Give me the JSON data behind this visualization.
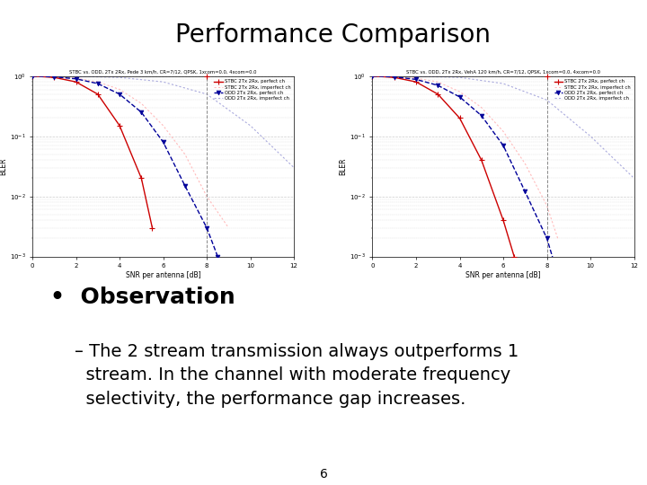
{
  "title": "Performance Comparison",
  "title_fontsize": 20,
  "title_fontweight": "normal",
  "background_color": "#ffffff",
  "page_number": "6",
  "plot1": {
    "subtitle": "STBC vs. ODD, 2Tx 2Rx, Pede 3 km/h, CR=7/12, QPSK, 1xcom=0.0, 4xcom=0.0",
    "xlabel": "SNR per antenna [dB]",
    "ylabel": "BLER",
    "xlim": [
      0,
      12
    ],
    "ylim_log": [
      -3,
      0
    ],
    "xticks": [
      0,
      2,
      4,
      6,
      8,
      10,
      12
    ],
    "xtick_labels": [
      "0",
      "2",
      "4",
      "6",
      "8",
      "10",
      "12"
    ],
    "legend": [
      "STBC 2Tx 2Rx, perfect ch",
      "STBC 2Tx 2Rx, imperfect ch",
      "ODD 2Tx 2Rx, perfect ch",
      "ODD 2Tx 2Rx, imperfect ch"
    ],
    "curves": {
      "stbc_perf_x": [
        0,
        1,
        2,
        3,
        4,
        5,
        5.5
      ],
      "stbc_perf_y": [
        1.0,
        0.95,
        0.8,
        0.5,
        0.15,
        0.02,
        0.003
      ],
      "stbc_imperf_x": [
        0,
        1,
        2,
        3,
        4,
        5,
        6,
        7,
        8,
        9
      ],
      "stbc_imperf_y": [
        1.0,
        0.98,
        0.92,
        0.8,
        0.6,
        0.35,
        0.15,
        0.05,
        0.01,
        0.003
      ],
      "odd_perf_x": [
        0,
        1,
        2,
        3,
        4,
        5,
        6,
        7,
        8,
        8.5
      ],
      "odd_perf_y": [
        1.0,
        0.97,
        0.9,
        0.75,
        0.5,
        0.25,
        0.08,
        0.015,
        0.003,
        0.001
      ],
      "odd_imperf_x": [
        0,
        2,
        4,
        6,
        8,
        10,
        12
      ],
      "odd_imperf_y": [
        1.0,
        0.99,
        0.95,
        0.8,
        0.5,
        0.15,
        0.03
      ],
      "vline_x": 8,
      "stbc_color": "#cc0000",
      "stbc_imperf_color": "#ffbbbb",
      "odd_color": "#000099",
      "odd_imperf_color": "#aaaadd"
    }
  },
  "plot2": {
    "subtitle": "STBC vs. ODD, 2Tx 2Rx, VehA 120 km/h, CR=7/12, QPSK, 1xcom=0.0, 4xcom=0.0",
    "xlabel": "SNR per antenna [dB]",
    "ylabel": "BLER",
    "xlim": [
      0,
      12
    ],
    "ylim_log": [
      -3,
      0
    ],
    "xticks": [
      0,
      2,
      4,
      6,
      8,
      10,
      12
    ],
    "xtick_labels": [
      "0",
      "2",
      "4",
      "6",
      "8",
      "10",
      "12"
    ],
    "legend": [
      "STBC 2Tx 2Rx, perfect ch",
      "STBC 2Tx 2Rx, imperfect ch",
      "ODD 2Tx 2Rx, perfect ch",
      "ODD 2Tx 2Rx, imperfect ch"
    ],
    "curves": {
      "stbc_perf_x": [
        0,
        1,
        2,
        3,
        4,
        5,
        6,
        6.5
      ],
      "stbc_perf_y": [
        1.0,
        0.95,
        0.8,
        0.5,
        0.2,
        0.04,
        0.004,
        0.001
      ],
      "stbc_imperf_x": [
        0,
        1,
        2,
        3,
        4,
        5,
        6,
        7,
        8,
        8.5
      ],
      "stbc_imperf_y": [
        1.0,
        0.98,
        0.92,
        0.8,
        0.55,
        0.3,
        0.12,
        0.035,
        0.007,
        0.002
      ],
      "odd_perf_x": [
        0,
        1,
        2,
        3,
        4,
        5,
        6,
        7,
        8,
        8.5
      ],
      "odd_perf_y": [
        1.0,
        0.97,
        0.88,
        0.7,
        0.45,
        0.22,
        0.07,
        0.012,
        0.002,
        0.0005
      ],
      "odd_imperf_x": [
        0,
        2,
        4,
        6,
        8,
        10,
        12
      ],
      "odd_imperf_y": [
        1.0,
        0.99,
        0.95,
        0.75,
        0.4,
        0.1,
        0.02
      ],
      "vline_x": 8,
      "stbc_color": "#cc0000",
      "stbc_imperf_color": "#ffbbbb",
      "odd_color": "#000099",
      "odd_imperf_color": "#aaaadd"
    }
  },
  "bullet_text": "Observation",
  "bullet_fontsize": 18,
  "body_fontsize": 14,
  "body_line1": "– The 2 stream transmission always outperforms 1",
  "body_line2": "  stream. In the channel with moderate frequency",
  "body_line3": "  selectivity, the performance gap increases."
}
